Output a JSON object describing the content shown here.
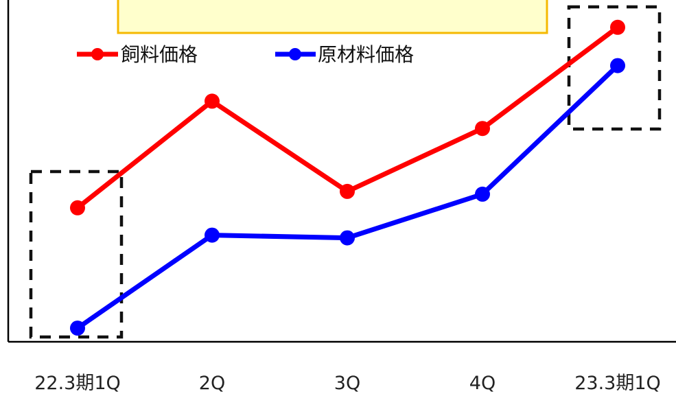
{
  "chart_data": {
    "type": "line",
    "categories": [
      "22.3期1Q",
      "2Q",
      "3Q",
      "4Q",
      "23.3期1Q"
    ],
    "series": [
      {
        "name": "飼料価格",
        "color": "#ff0000",
        "values": [
          49,
          88,
          55,
          78,
          115
        ]
      },
      {
        "name": "原材料価格",
        "color": "#0000ff",
        "values": [
          5,
          39,
          38,
          54,
          101
        ]
      }
    ],
    "ylim": [
      0,
      125
    ],
    "title": "",
    "xlabel": "",
    "ylabel": "",
    "legend_position": "top-left",
    "grid": false,
    "annotations": [
      {
        "type": "dashed-box",
        "target_category": "22.3期1Q"
      },
      {
        "type": "dashed-box",
        "target_category": "23.3期1Q"
      }
    ],
    "callout_box_color": "#ffffcc",
    "callout_border_color": "#f5b800"
  }
}
